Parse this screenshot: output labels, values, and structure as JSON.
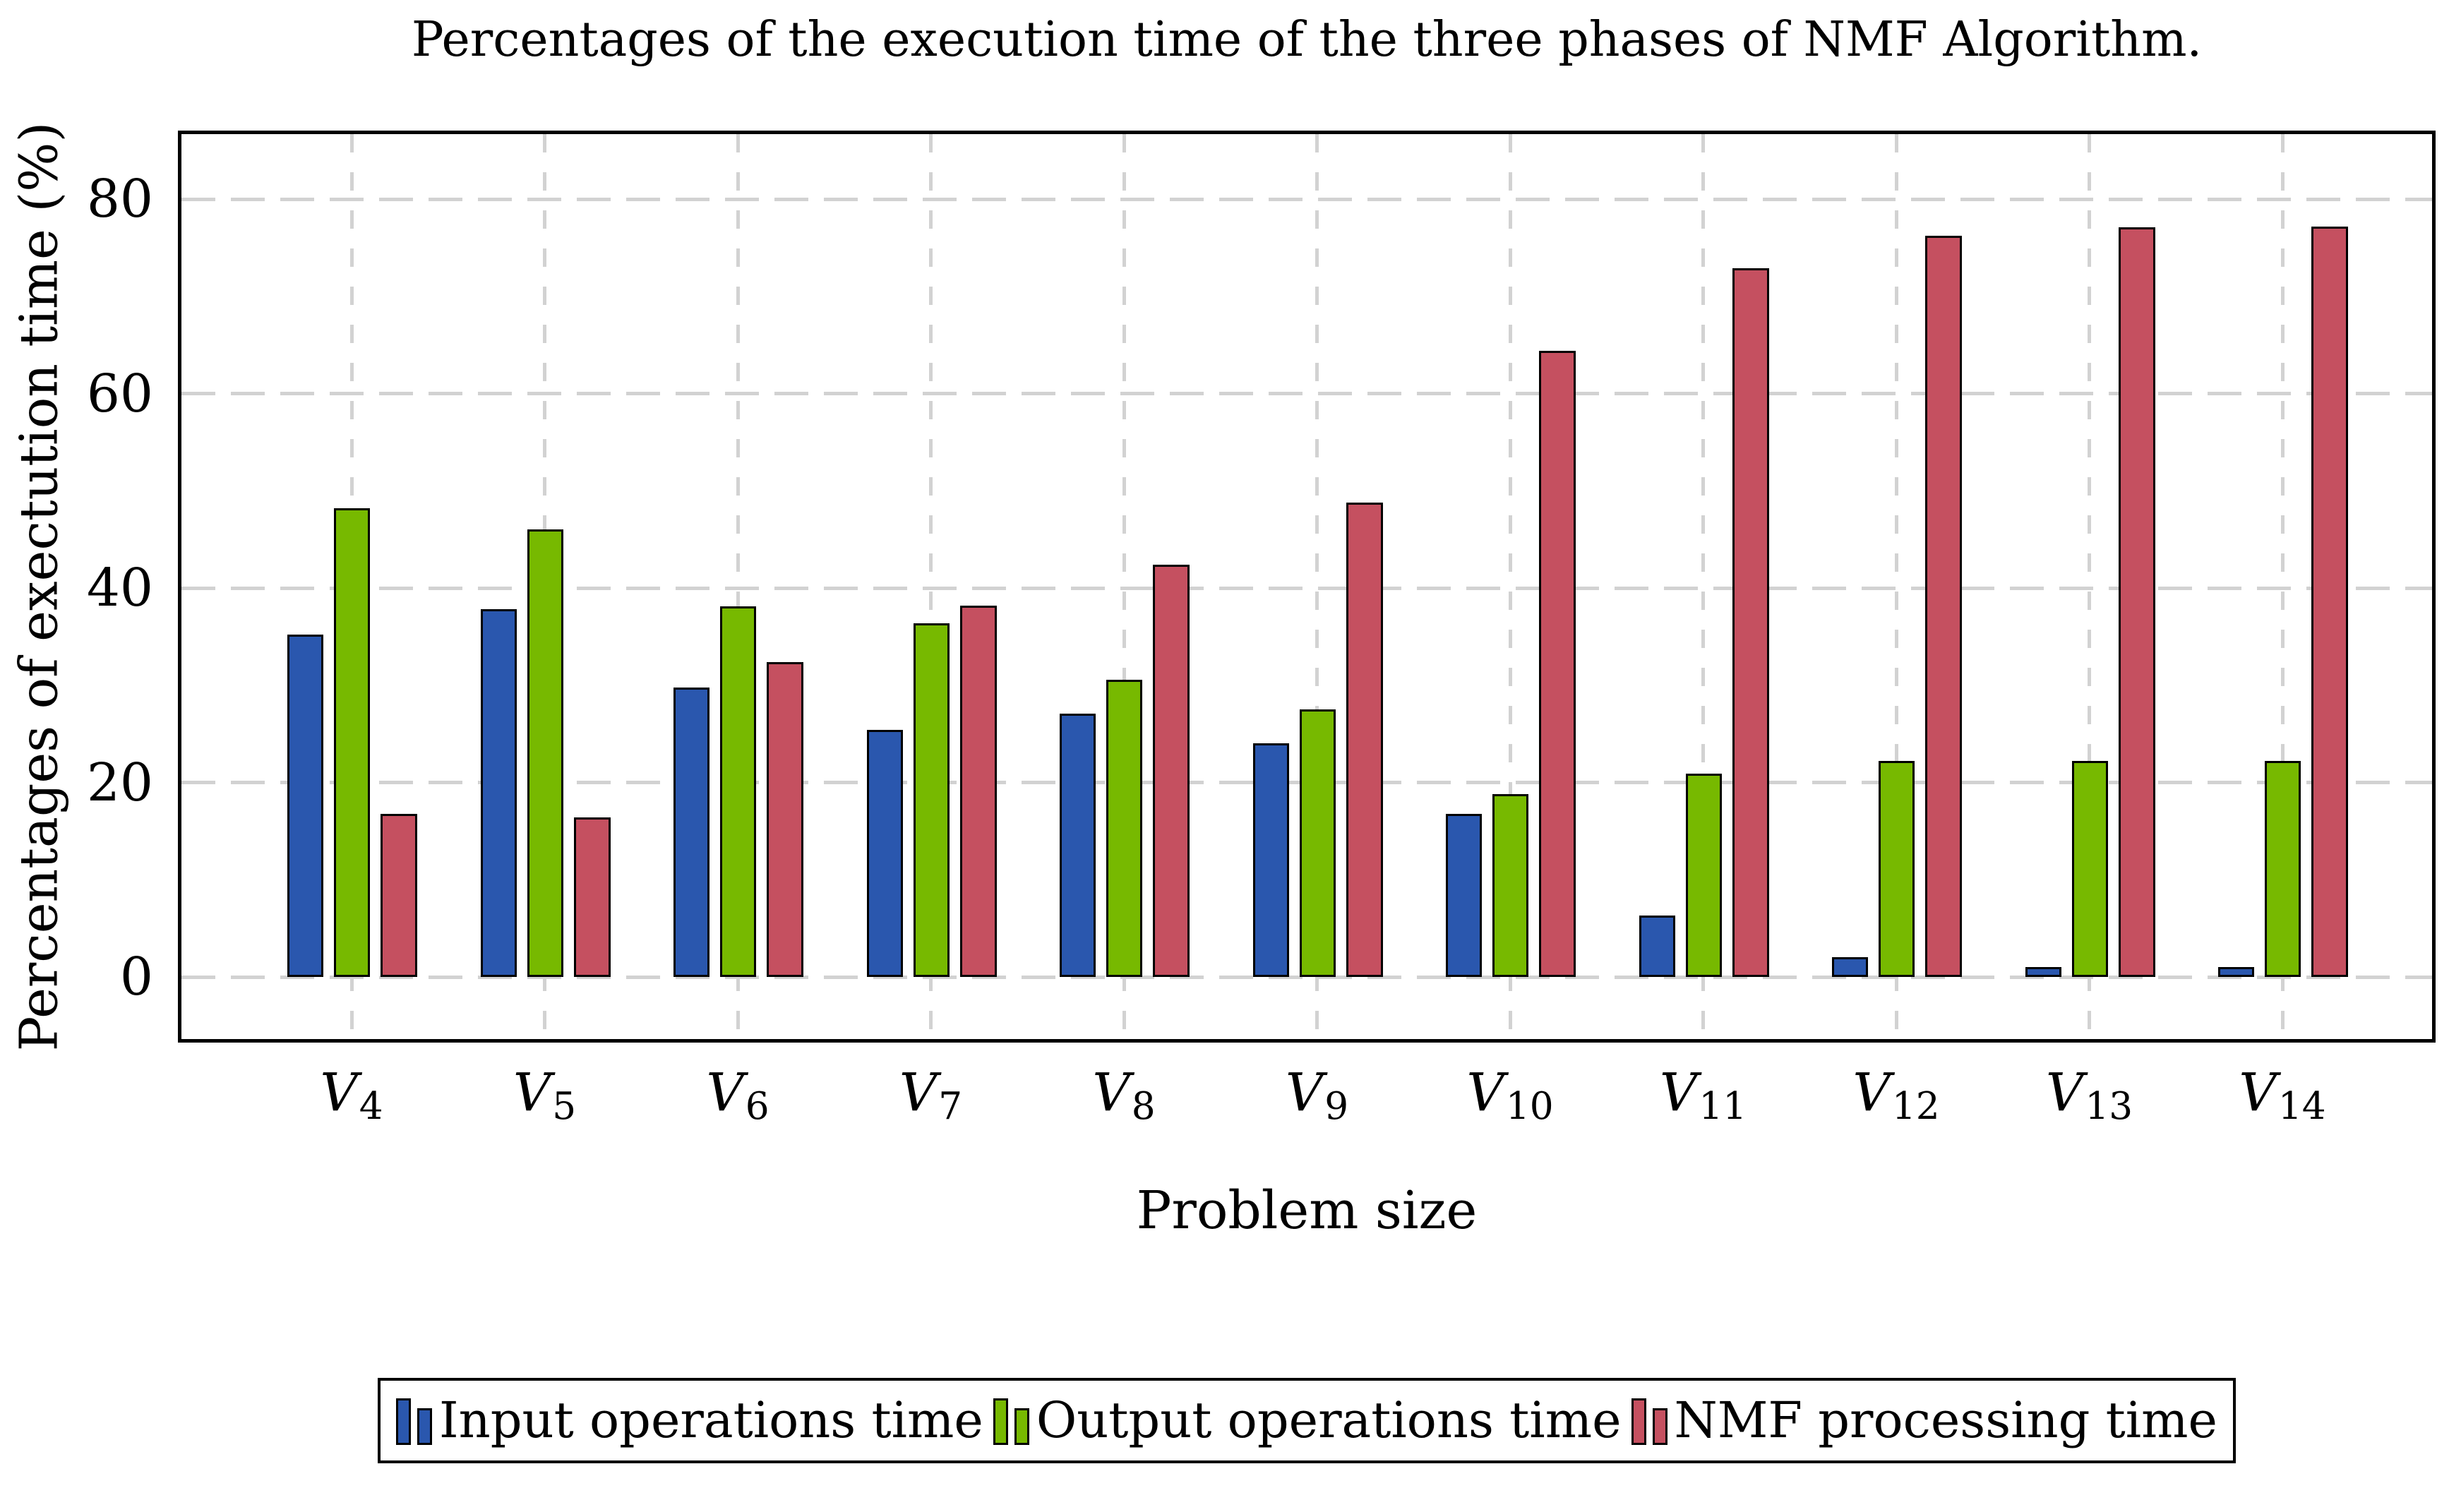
{
  "figure": {
    "title": "Percentages of the execution time of the three phases of NMF Algorithm.",
    "xlabel": "Problem size",
    "ylabel": "Percentages of exectution time (%)"
  },
  "chart_data": {
    "type": "bar",
    "title": "Percentages of the execution time of the three phases of NMF Algorithm.",
    "xlabel": "Problem size",
    "ylabel": "Percentages of exectution time (%)",
    "categories": [
      {
        "base": "V",
        "sub": "4"
      },
      {
        "base": "V",
        "sub": "5"
      },
      {
        "base": "V",
        "sub": "6"
      },
      {
        "base": "V",
        "sub": "7"
      },
      {
        "base": "V",
        "sub": "8"
      },
      {
        "base": "V",
        "sub": "9"
      },
      {
        "base": "V",
        "sub": "10"
      },
      {
        "base": "V",
        "sub": "11"
      },
      {
        "base": "V",
        "sub": "12"
      },
      {
        "base": "V",
        "sub": "13"
      },
      {
        "base": "V",
        "sub": "14"
      }
    ],
    "series": [
      {
        "name": "Input operations time",
        "color": "#2a57ae",
        "values": [
          35.2,
          37.8,
          29.8,
          25.4,
          27.1,
          24.0,
          16.8,
          6.3,
          2.0,
          1.0,
          1.0
        ]
      },
      {
        "name": "Output operations time",
        "color": "#77b900",
        "values": [
          48.2,
          46.0,
          38.1,
          36.4,
          30.6,
          27.5,
          18.8,
          20.9,
          22.2,
          22.2,
          22.2
        ]
      },
      {
        "name": "NMF processing time",
        "color": "#c55060",
        "values": [
          16.8,
          16.4,
          32.4,
          38.2,
          42.4,
          48.8,
          64.4,
          72.9,
          76.2,
          77.1,
          77.2
        ]
      }
    ],
    "yticks": [
      0,
      20,
      40,
      60,
      80
    ],
    "ylim": [
      -6.4,
      86.7
    ],
    "grid": {
      "horizontal": true,
      "vertical": true,
      "style": "dashed",
      "color": "#d2d2d2"
    },
    "legend": {
      "position": "bottom-center-boxed",
      "entries": [
        "Input operations time",
        "Output operations time",
        "NMF processing time"
      ]
    }
  }
}
